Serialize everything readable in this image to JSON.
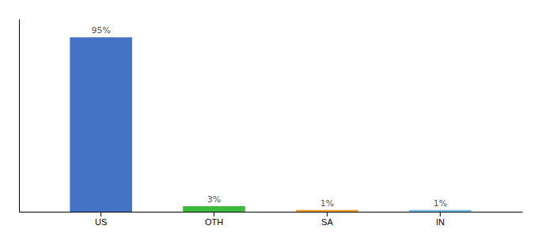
{
  "chart_data": {
    "type": "bar",
    "categories": [
      "US",
      "OTH",
      "SA",
      "IN"
    ],
    "values": [
      95,
      3,
      1,
      1
    ],
    "value_labels": [
      "95%",
      "3%",
      "1%",
      "1%"
    ],
    "colors": [
      "#4472c4",
      "#3dba3d",
      "#f0a030",
      "#74c0e8"
    ],
    "ylim": [
      0,
      105
    ],
    "data_labels": true,
    "tick_labels": "x",
    "grid": false
  }
}
